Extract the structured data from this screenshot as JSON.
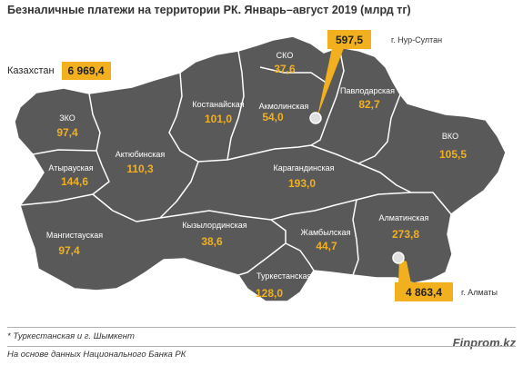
{
  "title": "Безналичные платежи на территории РК. Январь–август  2019  (млрд тг)",
  "kazakhstan": {
    "label": "Казахстан",
    "value": "6 969,4"
  },
  "callouts": {
    "nur_sultan": {
      "value": "597,5",
      "label": "г. Нур-Султан"
    },
    "almaty": {
      "value": "4 863,4",
      "label": "г. Алматы"
    }
  },
  "regions": [
    {
      "id": "sko",
      "name": "СКО",
      "value": "37,6"
    },
    {
      "id": "kostanay",
      "name": "Костанайская",
      "value": "101,0"
    },
    {
      "id": "akmola",
      "name": "Акмолинская",
      "value": "54,0"
    },
    {
      "id": "pavlodar",
      "name": "Павлодарская",
      "value": "82,7"
    },
    {
      "id": "zko",
      "name": "ЗКО",
      "value": "97,4"
    },
    {
      "id": "aktobe",
      "name": "Актюбинская",
      "value": "110,3"
    },
    {
      "id": "vko",
      "name": "ВКО",
      "value": "105,5"
    },
    {
      "id": "atyrau",
      "name": "Атырауская",
      "value": "144,6"
    },
    {
      "id": "karaganda",
      "name": "Карагандинская",
      "value": "193,0"
    },
    {
      "id": "mangystau",
      "name": "Мангистауская",
      "value": "97,4"
    },
    {
      "id": "kyzylorda",
      "name": "Кызылординская",
      "value": "38,6"
    },
    {
      "id": "zhambyl",
      "name": "Жамбылская",
      "value": "44,7"
    },
    {
      "id": "almaty_reg",
      "name": "Алматинская",
      "value": "273,8"
    },
    {
      "id": "turkestan",
      "name": "Туркестанская*",
      "value": "128,0"
    }
  ],
  "footnote": "* Туркестанская и г. Шымкент",
  "source": "На основе данных Национального  Банка РК",
  "brand": "Finprom.kz",
  "colors": {
    "map_fill": "#595959",
    "border": "#ffffff",
    "accent": "#f2b01e"
  }
}
